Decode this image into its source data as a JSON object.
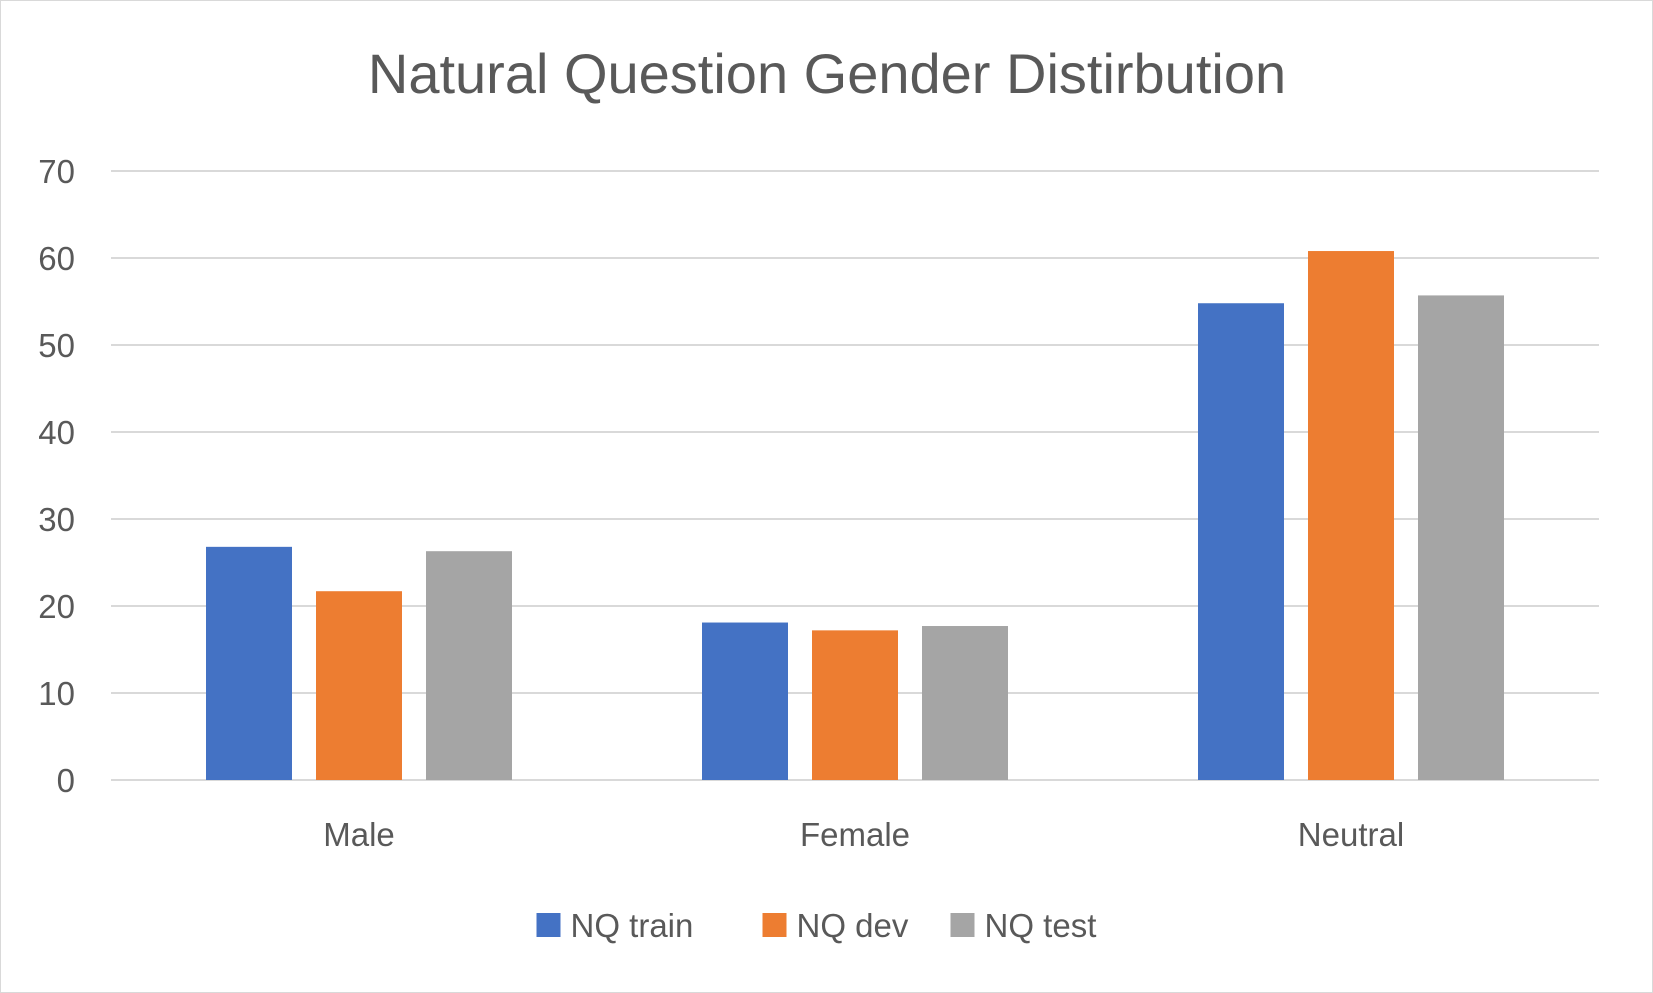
{
  "chart_data": {
    "type": "bar",
    "title": "Natural Question Gender Distirbution",
    "xlabel": "",
    "ylabel": "",
    "categories": [
      "Male",
      "Female",
      "Neutral"
    ],
    "series": [
      {
        "name": "NQ train",
        "color": "#4472c4",
        "values": [
          26.8,
          18.1,
          54.8
        ]
      },
      {
        "name": "NQ dev",
        "color": "#ed7d31",
        "values": [
          21.7,
          17.2,
          60.8
        ]
      },
      {
        "name": "NQ test",
        "color": "#a5a5a5",
        "values": [
          26.3,
          17.7,
          55.7
        ]
      }
    ],
    "ylim": [
      0,
      70
    ],
    "yticks": [
      "0",
      "10",
      "20",
      "30",
      "40",
      "50",
      "60",
      "70"
    ],
    "grid": true,
    "gridline_color": "#d9d9d9",
    "legend_position": "bottom"
  }
}
